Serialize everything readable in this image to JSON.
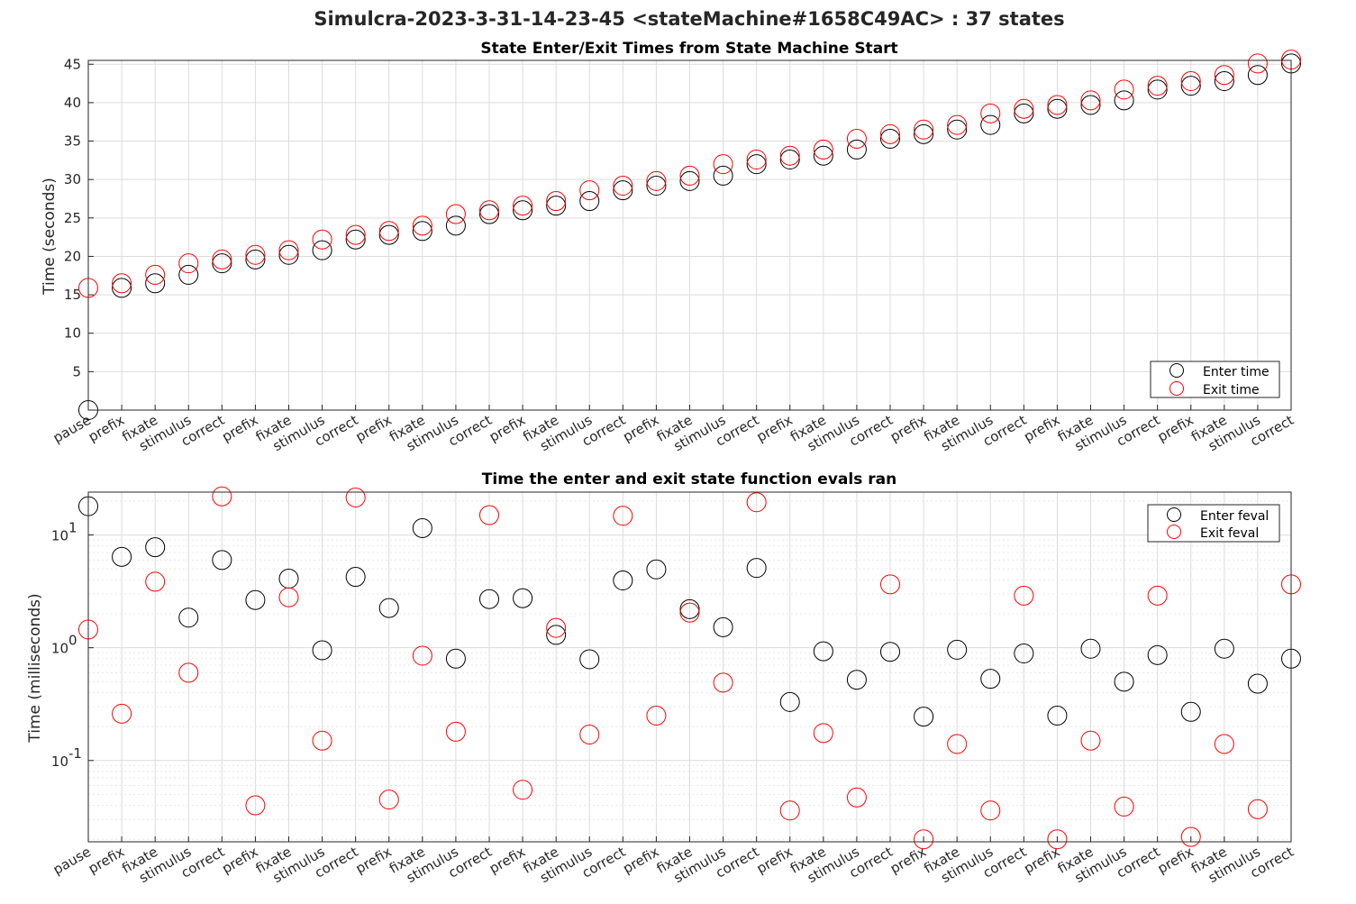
{
  "figure": {
    "suptitle": "Simulcra-2023-3-31-14-23-45 <stateMachine#1658C49AC> : 37 states"
  },
  "chart_data": [
    {
      "type": "scatter",
      "title": "State Enter/Exit Times from State Machine Start",
      "xlabel": "",
      "ylabel": "Time (seconds)",
      "yscale": "linear",
      "ylim": [
        0,
        45.5
      ],
      "yticks": [
        5,
        10,
        15,
        20,
        25,
        30,
        35,
        40,
        45
      ],
      "grid": true,
      "legend_position": "bottom-right",
      "categories": [
        "pause",
        "prefix",
        "fixate",
        "stimulus",
        "correct",
        "prefix",
        "fixate",
        "stimulus",
        "correct",
        "prefix",
        "fixate",
        "stimulus",
        "correct",
        "prefix",
        "fixate",
        "stimulus",
        "correct",
        "prefix",
        "fixate",
        "stimulus",
        "correct",
        "prefix",
        "fixate",
        "stimulus",
        "correct",
        "prefix",
        "fixate",
        "stimulus",
        "correct",
        "prefix",
        "fixate",
        "stimulus",
        "correct",
        "prefix",
        "fixate",
        "stimulus",
        "correct"
      ],
      "series": [
        {
          "name": "Enter time",
          "color": "#000000",
          "values": [
            0,
            15.9,
            16.5,
            17.6,
            19.1,
            19.6,
            20.2,
            20.8,
            22.2,
            22.8,
            23.3,
            24.0,
            25.5,
            26.0,
            26.6,
            27.2,
            28.6,
            29.2,
            29.8,
            30.5,
            32.0,
            32.6,
            33.1,
            33.9,
            35.3,
            35.9,
            36.5,
            37.1,
            38.6,
            39.2,
            39.7,
            40.3,
            41.7,
            42.2,
            42.8,
            43.6,
            45.1
          ]
        },
        {
          "name": "Exit time",
          "color": "#ff0000",
          "values": [
            15.9,
            16.5,
            17.6,
            19.1,
            19.6,
            20.2,
            20.8,
            22.2,
            22.8,
            23.3,
            24.0,
            25.5,
            26.0,
            26.6,
            27.2,
            28.6,
            29.2,
            29.8,
            30.5,
            32.0,
            32.6,
            33.1,
            33.9,
            35.3,
            35.9,
            36.5,
            37.1,
            38.6,
            39.2,
            39.7,
            40.3,
            41.7,
            42.2,
            42.8,
            43.6,
            45.1,
            45.6
          ]
        }
      ]
    },
    {
      "type": "scatter",
      "title": "Time the enter and exit state function evals ran",
      "xlabel": "",
      "ylabel": "Time (milliseconds)",
      "yscale": "log",
      "ylim": [
        0.019,
        24
      ],
      "yticks": [
        0.1,
        1,
        10
      ],
      "yticklabels": [
        "10",
        "10",
        "10"
      ],
      "ytickexponents": [
        "-1",
        "0",
        "1"
      ],
      "grid": true,
      "legend_position": "top-right",
      "categories": [
        "pause",
        "prefix",
        "fixate",
        "stimulus",
        "correct",
        "prefix",
        "fixate",
        "stimulus",
        "correct",
        "prefix",
        "fixate",
        "stimulus",
        "correct",
        "prefix",
        "fixate",
        "stimulus",
        "correct",
        "prefix",
        "fixate",
        "stimulus",
        "correct",
        "prefix",
        "fixate",
        "stimulus",
        "correct",
        "prefix",
        "fixate",
        "stimulus",
        "correct",
        "prefix",
        "fixate",
        "stimulus",
        "correct",
        "prefix",
        "fixate",
        "stimulus",
        "correct"
      ],
      "series": [
        {
          "name": "Enter feval",
          "color": "#000000",
          "values": [
            18,
            6.4,
            7.8,
            1.85,
            6.0,
            2.65,
            4.1,
            0.95,
            4.25,
            2.25,
            11.5,
            0.8,
            2.7,
            2.75,
            1.3,
            0.79,
            3.95,
            4.95,
            2.2,
            1.52,
            5.1,
            0.33,
            0.93,
            0.52,
            0.92,
            0.245,
            0.96,
            0.53,
            0.89,
            0.25,
            0.98,
            0.5,
            0.86,
            0.27,
            0.98,
            0.48,
            0.8
          ]
        },
        {
          "name": "Exit feval",
          "color": "#ff0000",
          "values": [
            1.45,
            0.26,
            3.85,
            0.6,
            22,
            0.04,
            2.8,
            0.15,
            21.5,
            0.045,
            0.85,
            0.18,
            15,
            0.055,
            1.5,
            0.17,
            14.8,
            0.25,
            2.05,
            0.49,
            19.5,
            0.036,
            0.175,
            0.047,
            3.65,
            0.02,
            0.14,
            0.036,
            2.9,
            0.02,
            0.15,
            0.039,
            2.9,
            0.021,
            0.14,
            0.037,
            3.65
          ]
        }
      ]
    }
  ]
}
